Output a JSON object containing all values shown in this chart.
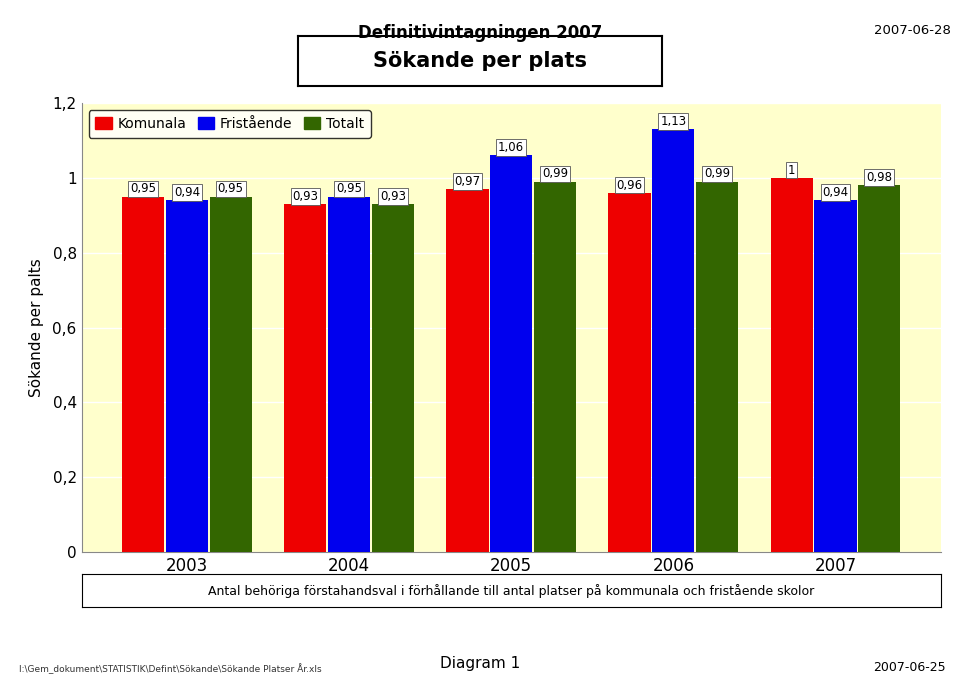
{
  "title": "Sökande per plats",
  "header_title": "Definitivintagningen 2007",
  "header_date": "2007-06-28",
  "ylabel": "Sökande per palts",
  "years": [
    "2003",
    "2004",
    "2005",
    "2006",
    "2007"
  ],
  "komunala": [
    0.95,
    0.93,
    0.97,
    0.96,
    1.0
  ],
  "fristaende": [
    0.94,
    0.95,
    1.06,
    1.13,
    0.94
  ],
  "totalt": [
    0.95,
    0.93,
    0.99,
    0.99,
    0.98
  ],
  "komunala_labels": [
    "0,95",
    "0,93",
    "0,97",
    "0,96",
    "1"
  ],
  "fristaende_labels": [
    "0,94",
    "0,95",
    "1,06",
    "1,13",
    "0,94"
  ],
  "totalt_labels": [
    "0,95",
    "0,93",
    "0,99",
    "0,99",
    "0,98"
  ],
  "bar_color_komunala": "#EE0000",
  "bar_color_fristaende": "#0000EE",
  "bar_color_totalt": "#336600",
  "ylim": [
    0,
    1.2
  ],
  "yticks": [
    0,
    0.2,
    0.4,
    0.6,
    0.8,
    1.0,
    1.2
  ],
  "ytick_labels": [
    "0",
    "0,2",
    "0,4",
    "0,6",
    "0,8",
    "1",
    "1,2"
  ],
  "legend_komunala": "Komunala",
  "legend_fristaende": "Fristående",
  "legend_totalt": "Totalt",
  "footnote": "Antal behöriga förstahandsval i förhållande till antal platser på kommunala och fristående skolor",
  "bottom_left": "I:\\Gem_dokument\\STATISTIK\\Defint\\Sökande\\Sökande Platser År.xls",
  "bottom_center": "Diagram 1",
  "bottom_right": "2007-06-25",
  "bg_color": "#FFFFCC"
}
